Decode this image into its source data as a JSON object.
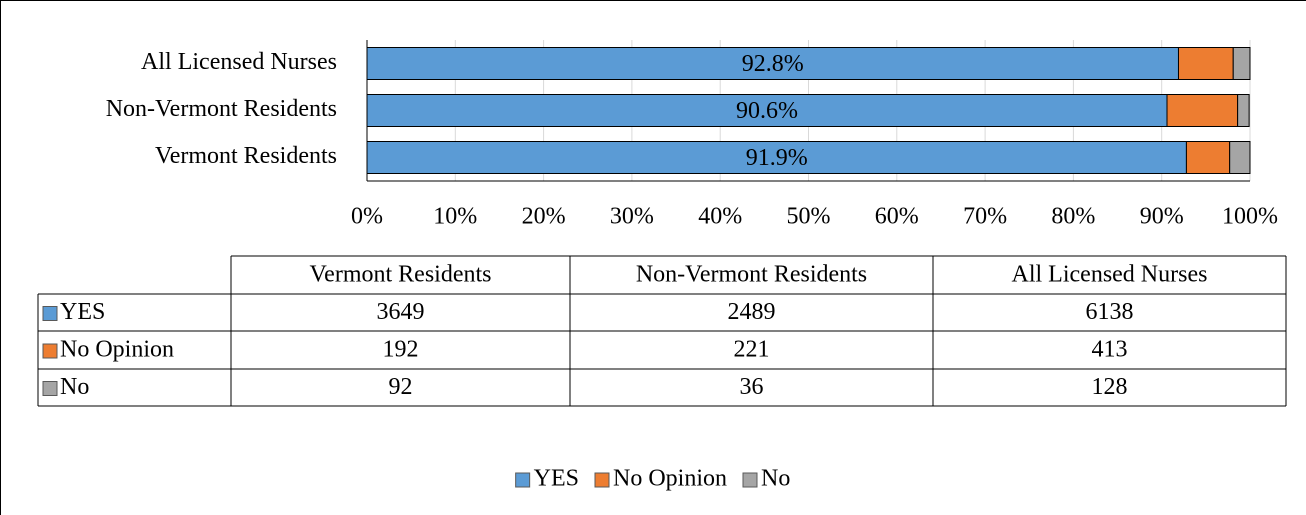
{
  "chart_data": {
    "type": "stacked_bar_100",
    "orientation": "horizontal",
    "categories": [
      "Vermont Residents",
      "Non-Vermont Residents",
      "All Licensed Nurses"
    ],
    "series": [
      {
        "name": "YES",
        "color": "#5b9bd5",
        "values": [
          92.8,
          90.6,
          91.9
        ],
        "counts": [
          3649,
          2489,
          6138
        ]
      },
      {
        "name": "No Opinion",
        "color": "#ed7d31",
        "values": [
          4.9,
          8.0,
          6.2
        ],
        "counts": [
          192,
          221,
          413
        ]
      },
      {
        "name": "No",
        "color": "#a5a5a5",
        "values": [
          2.3,
          1.3,
          1.9
        ],
        "counts": [
          92,
          36,
          128
        ]
      }
    ],
    "bar_labels": [
      "91.9%",
      "90.6%",
      "92.8%"
    ],
    "xlim": [
      0,
      100
    ],
    "xticks": [
      {
        "value": 0,
        "label": "0%"
      },
      {
        "value": 10,
        "label": "10%"
      },
      {
        "value": 20,
        "label": "20%"
      },
      {
        "value": 30,
        "label": "30%"
      },
      {
        "value": 40,
        "label": "40%"
      },
      {
        "value": 50,
        "label": "50%"
      },
      {
        "value": 60,
        "label": "60%"
      },
      {
        "value": 70,
        "label": "70%"
      },
      {
        "value": 80,
        "label": "80%"
      },
      {
        "value": 90,
        "label": "90%"
      },
      {
        "value": 100,
        "label": "100%"
      }
    ],
    "grid": true,
    "legend": "bottom",
    "data_table": true
  }
}
